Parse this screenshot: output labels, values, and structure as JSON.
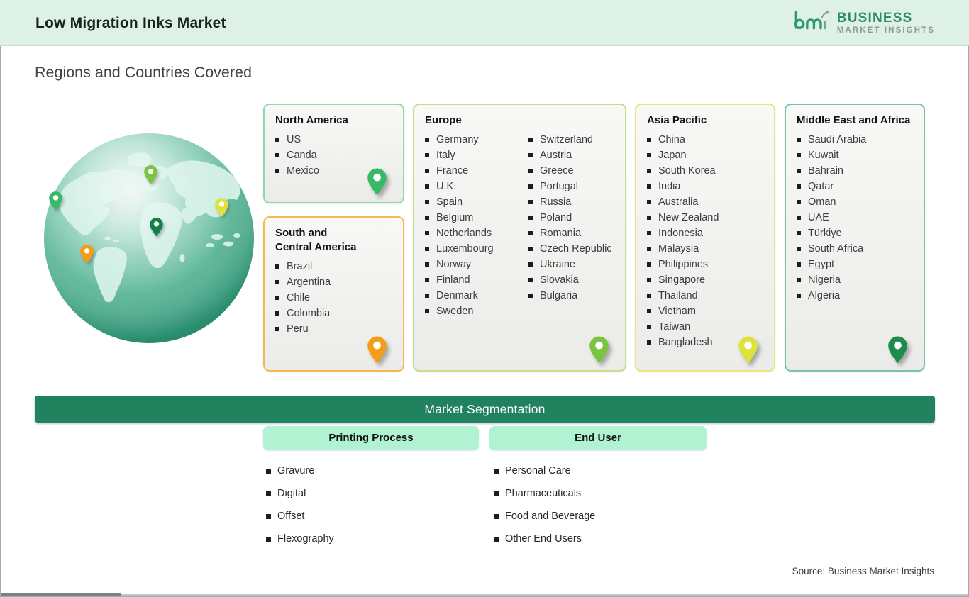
{
  "header": {
    "title": "Low Migration Inks Market",
    "logo": {
      "mark": "bmi",
      "name_line1": "BUSINESS",
      "name_line2": "MARKET INSIGHTS"
    }
  },
  "section_title": "Regions and Countries Covered",
  "regions": [
    {
      "name": "North America",
      "columns": [
        [
          "US",
          "Canda",
          "Mexico"
        ]
      ],
      "border_color": "#92d7ae",
      "pin_color": "#38b967"
    },
    {
      "name": "South and\nCentral America",
      "columns": [
        [
          "Brazil",
          "Argentina",
          "Chile",
          "Colombia",
          "Peru"
        ]
      ],
      "border_color": "#f3ba51",
      "pin_color": "#f59d17"
    },
    {
      "name": "Europe",
      "columns": [
        [
          "Germany",
          "Italy",
          "France",
          "U.K.",
          "Spain",
          "Belgium",
          "Netherlands",
          "Luxembourg",
          "Norway",
          "Finland",
          "Denmark",
          "Sweden"
        ],
        [
          "Switzerland",
          "Austria",
          "Greece",
          "Portugal",
          "Russia",
          "Poland",
          "Romania",
          "Czech Republic",
          "Ukraine",
          "Slovakia",
          "Bulgaria"
        ]
      ],
      "border_color": "#c6dd8a",
      "pin_color": "#7cc440"
    },
    {
      "name": "Asia Pacific",
      "columns": [
        [
          "China",
          "Japan",
          "South Korea",
          "India",
          "Australia",
          "New Zealand",
          "Indonesia",
          "Malaysia",
          "Philippines",
          "Singapore",
          "Thailand",
          "Vietnam",
          "Taiwan",
          "Bangladesh"
        ]
      ],
      "border_color": "#ebe57c",
      "pin_color": "#dde23c"
    },
    {
      "name": "Middle East and Africa",
      "columns": [
        [
          "Saudi Arabia",
          "Kuwait",
          "Bahrain",
          "Qatar",
          "Oman",
          "UAE",
          "Türkiye",
          "South Africa",
          "Egypt",
          "Nigeria",
          "Algeria"
        ]
      ],
      "border_color": "#79c4a4",
      "pin_color": "#1d8b4a"
    }
  ],
  "globe": {
    "pins": [
      {
        "region": "north-america",
        "color": "#38b967"
      },
      {
        "region": "europe-russia",
        "color": "#7cc440"
      },
      {
        "region": "asia-pacific",
        "color": "#dde23c"
      },
      {
        "region": "middle-east",
        "color": "#157f46"
      },
      {
        "region": "south-america",
        "color": "#f59d17"
      }
    ]
  },
  "segmentation": {
    "banner": "Market Segmentation",
    "groups": [
      {
        "label": "Printing Process",
        "items": [
          "Gravure",
          "Digital",
          "Offset",
          "Flexography"
        ]
      },
      {
        "label": "End User",
        "items": [
          "Personal Care",
          "Pharmaceuticals",
          "Food and Beverage",
          "Other End Users"
        ]
      }
    ]
  },
  "source": "Source: Business Market Insights",
  "colors": {
    "header_bg": "#def1e7",
    "banner_bg": "#21825f",
    "pill_bg": "#b0f2d1",
    "logo_green": "#2f9a72",
    "logo_gray": "#8d989a"
  }
}
